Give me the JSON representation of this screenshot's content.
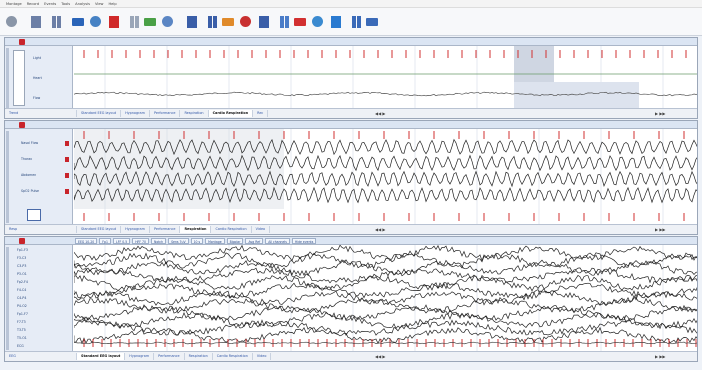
{
  "menu": [
    "Montage",
    "Record",
    "Events",
    "Tools",
    "Analysis",
    "View",
    "Help"
  ],
  "toolbar": {
    "icons": [
      {
        "name": "circle-gear-icon",
        "color": "#8a96a8"
      },
      {
        "name": "panes-icon",
        "color": "#6c7fa6"
      },
      {
        "name": "layout-icon",
        "color": "#6c7fa6"
      },
      {
        "name": "bar-chart-icon",
        "color": "#2a64b8"
      },
      {
        "name": "sparkle-icon",
        "color": "#4682c4"
      },
      {
        "name": "record-icon",
        "color": "#d02a2a"
      },
      {
        "name": "target-icon",
        "color": "#9aa6b8"
      },
      {
        "name": "drop-icon",
        "color": "#4aa046"
      },
      {
        "name": "trash-icon",
        "color": "#5b86c4"
      },
      {
        "name": "columns-icon",
        "color": "#3a5ea8"
      },
      {
        "name": "doc-bars-icon",
        "color": "#3a5ea8"
      },
      {
        "name": "bars-icon",
        "color": "#e08a2a"
      },
      {
        "name": "bars-red-icon",
        "color": "#c83030"
      },
      {
        "name": "split-icon",
        "color": "#3a5ea8"
      },
      {
        "name": "grid-icon",
        "color": "#4a7cc8"
      },
      {
        "name": "flame-icon",
        "color": "#d23030"
      },
      {
        "name": "flow-icon",
        "color": "#3a8ad0"
      },
      {
        "name": "network-icon",
        "color": "#2a7ad0"
      },
      {
        "name": "chart-lines-icon",
        "color": "#3a6ab8"
      },
      {
        "name": "wave-icon",
        "color": "#3a6ab8"
      }
    ]
  },
  "pane1": {
    "tabs": [
      "Standard EEG layout",
      "Hypnogram",
      "Performance",
      "Respiration",
      "Cardio Respiration",
      "Rec"
    ],
    "active_tab": 4,
    "footer_left": "Trend",
    "side_labels": [
      "Light",
      "Heart",
      "Flow"
    ]
  },
  "pane2": {
    "side_labels": [
      "Nasal Flow",
      "Thorax",
      "Abdomen",
      "SpO2 Pulse"
    ],
    "tabs": [
      "Standard EEG layout",
      "Hypnogram",
      "Performance",
      "Respiration",
      "Cardio Respiration",
      "Video"
    ],
    "active_tab": 3,
    "footer_left": "Resp"
  },
  "pane3": {
    "header_cells": [
      "EEG 10-20",
      "Fp1",
      "LFF 0.5",
      "HFF 70",
      "Notch",
      "Sens 7uV",
      "10 s",
      "Montage",
      "Bipolar",
      "Avg Ref",
      "All channels",
      "Hide events"
    ],
    "side_labels": [
      "Fp1-F3",
      "F3-C3",
      "C3-P3",
      "P3-O1",
      "Fp2-F4",
      "F4-C4",
      "C4-P4",
      "P4-O2",
      "Fp1-F7",
      "F7-T3",
      "T3-T5",
      "T5-O1",
      "ECG"
    ],
    "tabs": [
      "Standard EEG layout",
      "Hypnogram",
      "Performance",
      "Respiration",
      "Cardio Respiration",
      "Video"
    ],
    "active_tab": 0,
    "footer_left": "EEG"
  }
}
